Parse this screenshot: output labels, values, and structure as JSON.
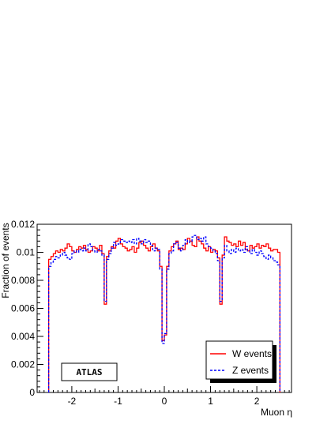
{
  "chart_data": {
    "type": "line",
    "xlabel": "Muon η",
    "ylabel": "Fraction of events",
    "xlim": [
      -2.75,
      2.75
    ],
    "ylim": [
      0,
      0.012
    ],
    "x_ticks": [
      "-2",
      "-1",
      "0",
      "1",
      "2"
    ],
    "y_ticks": [
      "0",
      "0.002",
      "0.004",
      "0.006",
      "0.008",
      "0.01",
      "0.012"
    ],
    "grid": false,
    "legend_position": "bottom-right",
    "label_box": "ATLAS",
    "bin_edges_start": -2.5,
    "bin_width": 0.05,
    "series": [
      {
        "name": "W events",
        "color": "#ff0000",
        "style": "solid",
        "values": [
          0.0095,
          0.0097,
          0.0099,
          0.0101,
          0.01,
          0.0102,
          0.0101,
          0.0103,
          0.0106,
          0.0104,
          0.0101,
          0.01,
          0.0102,
          0.0104,
          0.0103,
          0.0105,
          0.0102,
          0.01,
          0.0101,
          0.0104,
          0.0103,
          0.0101,
          0.0105,
          0.0099,
          0.0063,
          0.0097,
          0.0101,
          0.0104,
          0.0103,
          0.0108,
          0.011,
          0.0106,
          0.0104,
          0.0103,
          0.0101,
          0.0102,
          0.0104,
          0.01,
          0.0103,
          0.0107,
          0.0108,
          0.0105,
          0.0103,
          0.0101,
          0.0104,
          0.0106,
          0.0103,
          0.0101,
          0.009,
          0.0037,
          0.0041,
          0.009,
          0.0101,
          0.0104,
          0.0106,
          0.0108,
          0.0102,
          0.0103,
          0.0102,
          0.0106,
          0.011,
          0.0108,
          0.0105,
          0.0104,
          0.0111,
          0.0108,
          0.0106,
          0.0103,
          0.0101,
          0.0104,
          0.01,
          0.0102,
          0.0101,
          0.0096,
          0.0063,
          0.0098,
          0.0111,
          0.0108,
          0.0107,
          0.0105,
          0.0106,
          0.0104,
          0.0108,
          0.0105,
          0.0107,
          0.0102,
          0.0101,
          0.0105,
          0.0103,
          0.0104,
          0.0106,
          0.0103,
          0.0105,
          0.0104,
          0.0106,
          0.0103,
          0.0101,
          0.0102,
          0.0102,
          0.01
        ]
      },
      {
        "name": "Z events",
        "color": "#0000ff",
        "style": "dashed",
        "values": [
          0.009,
          0.0093,
          0.0095,
          0.0097,
          0.0096,
          0.0098,
          0.01,
          0.0098,
          0.0096,
          0.0095,
          0.0099,
          0.0101,
          0.01,
          0.0102,
          0.0101,
          0.0103,
          0.0101,
          0.0106,
          0.0104,
          0.0101,
          0.01,
          0.0102,
          0.0101,
          0.0098,
          0.0065,
          0.0095,
          0.0099,
          0.0103,
          0.0107,
          0.0105,
          0.0106,
          0.0109,
          0.0108,
          0.0107,
          0.0108,
          0.0107,
          0.0109,
          0.0106,
          0.011,
          0.0108,
          0.0106,
          0.0109,
          0.0107,
          0.0108,
          0.0105,
          0.0101,
          0.0103,
          0.0102,
          0.0088,
          0.0035,
          0.0042,
          0.0088,
          0.0099,
          0.0101,
          0.0106,
          0.0107,
          0.0103,
          0.0101,
          0.0105,
          0.0109,
          0.0107,
          0.0108,
          0.0111,
          0.0112,
          0.0109,
          0.011,
          0.0108,
          0.0111,
          0.0106,
          0.0104,
          0.0103,
          0.0101,
          0.0099,
          0.0094,
          0.0065,
          0.0096,
          0.0105,
          0.0101,
          0.0099,
          0.0102,
          0.01,
          0.0103,
          0.0101,
          0.0102,
          0.01,
          0.0104,
          0.0101,
          0.0099,
          0.0102,
          0.01,
          0.0098,
          0.0101,
          0.0099,
          0.0097,
          0.0095,
          0.0098,
          0.0096,
          0.0094,
          0.0093,
          0.0091
        ]
      }
    ]
  }
}
